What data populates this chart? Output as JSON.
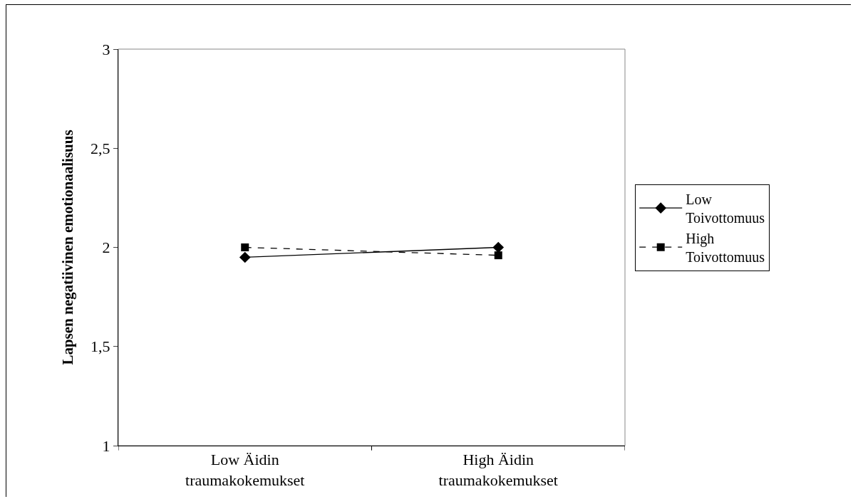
{
  "chart_data": {
    "type": "line",
    "ylabel": "Lapsen negatiivinen emotionaalisuus",
    "categories": [
      "Low Äidin traumakokemukset",
      "High Äidin traumakokemukset"
    ],
    "series": [
      {
        "name": "Low Toivottomuus",
        "color": "#000000",
        "values": [
          1.95,
          2.0
        ],
        "marker": "diamond",
        "line_style": "solid"
      },
      {
        "name": "High Toivottomuus",
        "color": "#000000",
        "values": [
          2.0,
          1.96
        ],
        "marker": "square",
        "line_style": "dashed"
      }
    ],
    "ylim": [
      1,
      3
    ],
    "yticks": [
      1,
      {
        "value": 1.5,
        "label": "1,5"
      },
      2,
      {
        "value": 2.5,
        "label": "2,5"
      },
      3
    ],
    "grid": false,
    "legend": "right"
  }
}
